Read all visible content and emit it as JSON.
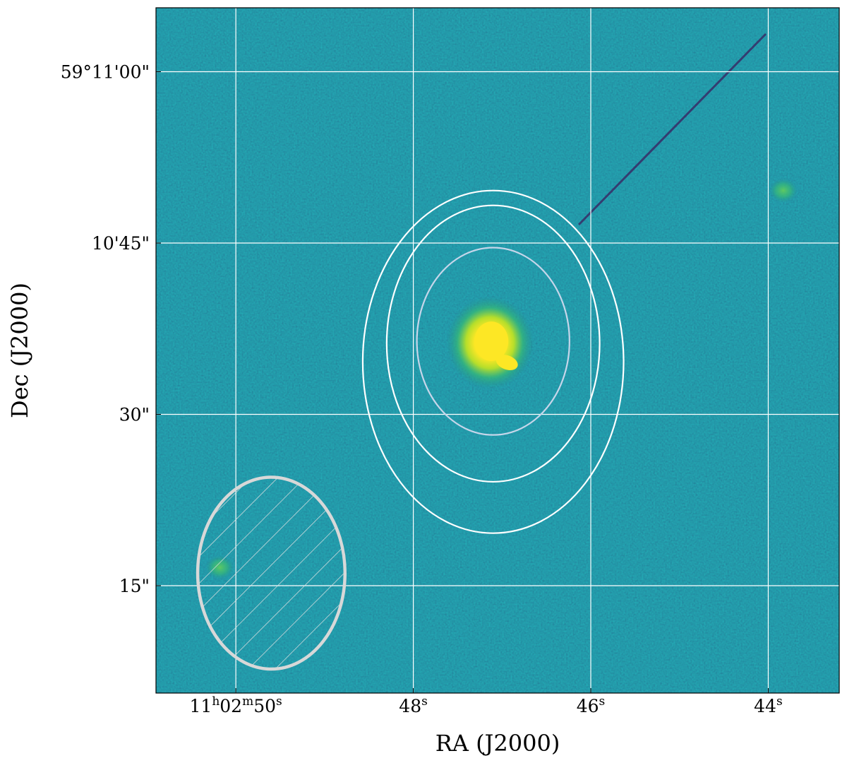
{
  "chart_data": {
    "type": "heatmap",
    "title": "",
    "xlabel": "RA (J2000)",
    "ylabel": "Dec (J2000)",
    "x_ticks": [
      {
        "ra_seconds": 50,
        "main": "11",
        "sup1": "h",
        "mid": "02",
        "sup2": "m",
        "sec": "50",
        "sup3": "s"
      },
      {
        "ra_seconds": 48,
        "main": "48",
        "sup3": "s"
      },
      {
        "ra_seconds": 46,
        "main": "46",
        "sup3": "s"
      },
      {
        "ra_seconds": 44,
        "main": "44",
        "sup3": "s"
      }
    ],
    "y_ticks": [
      {
        "dec_arcsec": 60,
        "label": "59°11'00\""
      },
      {
        "dec_arcsec": 45,
        "label": "10'45\""
      },
      {
        "dec_arcsec": 30,
        "label": "30\""
      },
      {
        "dec_arcsec": 15,
        "label": "15\""
      }
    ],
    "ra_range_seconds": [
      50.9,
      43.2
    ],
    "dec_range_arcsec": [
      5.6,
      65.6
    ],
    "grid": true,
    "grid_color": "#ffffff",
    "colormap": "viridis",
    "background_color": "#1f5f7e",
    "source": {
      "ra_seconds": 47.12,
      "dec_arcsec": 36.4,
      "color": "#fde725"
    },
    "secondary_sources": [
      {
        "ra_seconds": 50.18,
        "dec_arcsec": 16.6
      },
      {
        "ra_seconds": 43.83,
        "dec_arcsec": 49.6
      }
    ],
    "contours": [
      {
        "level": "outer",
        "color": "#ffffff",
        "center_ra": 47.1,
        "center_dec": 34.6,
        "ra_half_width": 1.47,
        "dec_half_width": 15.0
      },
      {
        "level": "middle",
        "color": "#ffffff",
        "center_ra": 47.1,
        "center_dec": 36.2,
        "ra_half_width": 1.2,
        "dec_half_width": 12.1
      },
      {
        "level": "inner",
        "color": "#c6d6ea",
        "center_ra": 47.1,
        "center_dec": 36.4,
        "ra_half_width": 0.86,
        "dec_half_width": 8.2
      }
    ],
    "beam": {
      "center_ra": 49.6,
      "center_dec": 16.1,
      "ra_half_width": 0.83,
      "dec_half_width": 8.4,
      "color": "#d8d8d8",
      "hatch": "/"
    }
  }
}
